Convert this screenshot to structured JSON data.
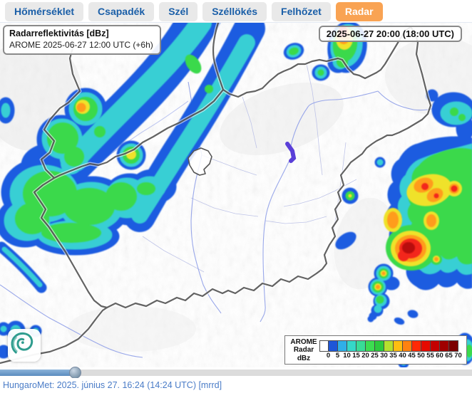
{
  "tabs": {
    "items": [
      {
        "label": "Hőmérséklet",
        "active": false
      },
      {
        "label": "Csapadék",
        "active": false
      },
      {
        "label": "Szél",
        "active": false
      },
      {
        "label": "Széllökés",
        "active": false
      },
      {
        "label": "Felhőzet",
        "active": false
      },
      {
        "label": "Radar",
        "active": true
      }
    ]
  },
  "map": {
    "info_box": {
      "title": "Radarreflektivitás [dBz]",
      "subtitle": "AROME 2025-06-27 12:00 UTC (+6h)"
    },
    "time_box": {
      "text": "2025-06-27 20:00 (18:00 UTC)"
    }
  },
  "legend": {
    "model": "AROME",
    "param": "Radar",
    "unit": "dBz",
    "ticks": [
      "0",
      "5",
      "10",
      "15",
      "20",
      "25",
      "30",
      "35",
      "40",
      "45",
      "50",
      "55",
      "60",
      "65",
      "70"
    ],
    "colors": [
      "#FFFFFF",
      "#1E56D8",
      "#2FAFE8",
      "#35D8C8",
      "#38DC96",
      "#3CDC50",
      "#2CC93C",
      "#B4E02E",
      "#FFBE10",
      "#FF8210",
      "#FF2A06",
      "#E60A00",
      "#C40000",
      "#A00000",
      "#7C0000"
    ]
  },
  "slider": {
    "percent": 16
  },
  "statusbar": {
    "text": "HungaroMet: 2025. június 27. 16:24 (14:24 UTC)  [mrrd]"
  },
  "colors": {
    "active_tab": "#F9A353",
    "tab_text": "#1B5FA8",
    "status_text": "#4A7CC7",
    "precip_blue": "#1D5BE0",
    "precip_cyan": "#38CFD4",
    "precip_green": "#3BD94C",
    "precip_yellow": "#EFE22C",
    "precip_orange": "#FF9C1E",
    "precip_red": "#F3281A",
    "lake_violet": "#5A3FD8"
  }
}
